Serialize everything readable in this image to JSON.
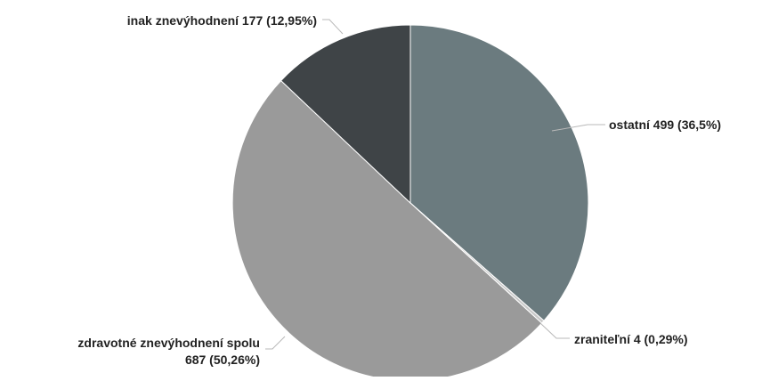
{
  "chart_data": {
    "type": "pie",
    "title": "",
    "legend": "none",
    "slices": [
      {
        "name": "ostatní",
        "value": 499,
        "percent_label": "36,5%",
        "label_lines": [
          "ostatní 499 (36,5%)"
        ],
        "color": "#6b7b7f"
      },
      {
        "name": "zraniteľní",
        "value": 4,
        "percent_label": "0,29%",
        "label_lines": [
          "zraniteľní 4 (0,29%)"
        ],
        "color": "#c9c9c9"
      },
      {
        "name": "zdravotné znevýhodnení spolu",
        "value": 687,
        "percent_label": "50,26%",
        "label_lines": [
          "zdravotné znevýhodnení spolu",
          "687 (50,26%)"
        ],
        "color": "#9a9a9a"
      },
      {
        "name": "inak znevýhodnení",
        "value": 177,
        "percent_label": "12,95%",
        "label_lines": [
          "inak znevýhodnení 177 (12,95%)"
        ],
        "color": "#3f4447"
      }
    ]
  }
}
